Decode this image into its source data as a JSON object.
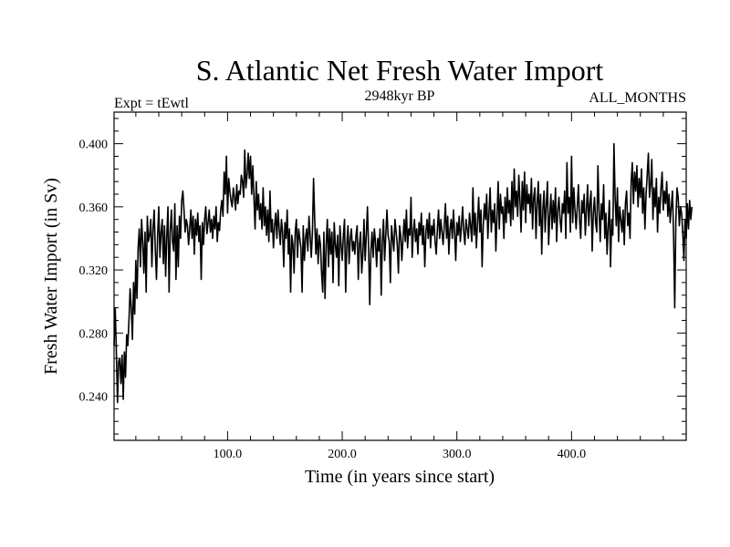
{
  "chart_data": {
    "type": "line",
    "title": "S. Atlantic Net Fresh Water Import",
    "subtitle_left": "Expt = tEwtl",
    "subtitle_center": "2948kyr BP",
    "subtitle_right": "ALL_MONTHS",
    "xlabel": "Time (in years since start)",
    "ylabel": "Fresh Water Import (in Sv)",
    "xlim": [
      1,
      500
    ],
    "ylim": [
      0.212,
      0.42
    ],
    "xticks": [
      100,
      200,
      300,
      400
    ],
    "xtick_labels": [
      "100.0",
      "200.0",
      "300.0",
      "400.0"
    ],
    "yticks": [
      0.24,
      0.28,
      0.32,
      0.36,
      0.4
    ],
    "ytick_labels": [
      "0.240",
      "0.280",
      "0.320",
      "0.360",
      "0.400"
    ],
    "x_minor_step": 20,
    "y_minor_step": 0.008,
    "grid": false,
    "series": [
      {
        "name": "Fresh Water Import",
        "color": "#000000",
        "x_start": 1,
        "x_step": 1,
        "values": [
          0.272,
          0.296,
          0.268,
          0.236,
          0.262,
          0.264,
          0.248,
          0.266,
          0.238,
          0.268,
          0.252,
          0.279,
          0.272,
          0.288,
          0.308,
          0.296,
          0.276,
          0.312,
          0.292,
          0.326,
          0.302,
          0.334,
          0.346,
          0.322,
          0.352,
          0.338,
          0.318,
          0.344,
          0.306,
          0.354,
          0.338,
          0.342,
          0.352,
          0.322,
          0.346,
          0.358,
          0.332,
          0.314,
          0.342,
          0.36,
          0.328,
          0.344,
          0.352,
          0.324,
          0.348,
          0.316,
          0.342,
          0.36,
          0.306,
          0.344,
          0.358,
          0.338,
          0.332,
          0.362,
          0.314,
          0.348,
          0.322,
          0.354,
          0.34,
          0.364,
          0.37,
          0.358,
          0.344,
          0.352,
          0.348,
          0.336,
          0.346,
          0.358,
          0.34,
          0.354,
          0.33,
          0.352,
          0.342,
          0.356,
          0.338,
          0.348,
          0.314,
          0.35,
          0.336,
          0.352,
          0.36,
          0.343,
          0.35,
          0.358,
          0.344,
          0.352,
          0.34,
          0.354,
          0.346,
          0.36,
          0.338,
          0.35,
          0.345,
          0.358,
          0.364,
          0.354,
          0.382,
          0.368,
          0.392,
          0.356,
          0.378,
          0.37,
          0.364,
          0.36,
          0.372,
          0.366,
          0.358,
          0.374,
          0.362,
          0.37,
          0.368,
          0.38,
          0.376,
          0.366,
          0.396,
          0.372,
          0.38,
          0.394,
          0.378,
          0.392,
          0.368,
          0.386,
          0.366,
          0.346,
          0.376,
          0.358,
          0.368,
          0.352,
          0.362,
          0.346,
          0.372,
          0.348,
          0.36,
          0.342,
          0.358,
          0.338,
          0.37,
          0.344,
          0.352,
          0.334,
          0.348,
          0.356,
          0.34,
          0.358,
          0.346,
          0.336,
          0.352,
          0.344,
          0.322,
          0.35,
          0.34,
          0.358,
          0.33,
          0.346,
          0.306,
          0.342,
          0.336,
          0.318,
          0.344,
          0.352,
          0.328,
          0.346,
          0.34,
          0.334,
          0.306,
          0.348,
          0.326,
          0.34,
          0.346,
          0.332,
          0.354,
          0.342,
          0.328,
          0.344,
          0.378,
          0.352,
          0.33,
          0.346,
          0.324,
          0.342,
          0.336,
          0.318,
          0.306,
          0.344,
          0.302,
          0.336,
          0.352,
          0.322,
          0.346,
          0.33,
          0.344,
          0.312,
          0.35,
          0.336,
          0.328,
          0.342,
          0.31,
          0.348,
          0.336,
          0.326,
          0.342,
          0.352,
          0.306,
          0.336,
          0.348,
          0.324,
          0.34,
          0.346,
          0.332,
          0.338,
          0.33,
          0.342,
          0.348,
          0.314,
          0.336,
          0.344,
          0.318,
          0.33,
          0.352,
          0.326,
          0.342,
          0.36,
          0.334,
          0.298,
          0.332,
          0.344,
          0.328,
          0.346,
          0.338,
          0.322,
          0.34,
          0.332,
          0.346,
          0.304,
          0.338,
          0.352,
          0.326,
          0.342,
          0.358,
          0.342,
          0.338,
          0.312,
          0.348,
          0.34,
          0.332,
          0.352,
          0.344,
          0.336,
          0.318,
          0.348,
          0.342,
          0.326,
          0.34,
          0.352,
          0.338,
          0.358,
          0.334,
          0.346,
          0.342,
          0.366,
          0.328,
          0.344,
          0.352,
          0.338,
          0.346,
          0.33,
          0.35,
          0.342,
          0.356,
          0.336,
          0.348,
          0.322,
          0.344,
          0.352,
          0.34,
          0.356,
          0.334,
          0.348,
          0.342,
          0.352,
          0.338,
          0.33,
          0.346,
          0.358,
          0.34,
          0.352,
          0.344,
          0.336,
          0.348,
          0.362,
          0.34,
          0.354,
          0.33,
          0.346,
          0.352,
          0.34,
          0.358,
          0.344,
          0.326,
          0.35,
          0.342,
          0.354,
          0.338,
          0.348,
          0.36,
          0.344,
          0.336,
          0.352,
          0.346,
          0.34,
          0.356,
          0.348,
          0.338,
          0.372,
          0.342,
          0.356,
          0.334,
          0.35,
          0.366,
          0.344,
          0.358,
          0.322,
          0.348,
          0.362,
          0.352,
          0.368,
          0.34,
          0.356,
          0.372,
          0.344,
          0.358,
          0.35,
          0.362,
          0.332,
          0.354,
          0.376,
          0.346,
          0.368,
          0.356,
          0.36,
          0.34,
          0.366,
          0.35,
          0.372,
          0.356,
          0.364,
          0.348,
          0.376,
          0.352,
          0.384,
          0.36,
          0.37,
          0.354,
          0.38,
          0.364,
          0.344,
          0.376,
          0.358,
          0.382,
          0.35,
          0.374,
          0.362,
          0.368,
          0.356,
          0.378,
          0.346,
          0.366,
          0.372,
          0.34,
          0.362,
          0.376,
          0.348,
          0.368,
          0.33,
          0.358,
          0.37,
          0.344,
          0.362,
          0.376,
          0.336,
          0.354,
          0.368,
          0.346,
          0.364,
          0.35,
          0.372,
          0.338,
          0.358,
          0.366,
          0.352,
          0.344,
          0.362,
          0.356,
          0.37,
          0.34,
          0.388,
          0.356,
          0.366,
          0.344,
          0.392,
          0.35,
          0.372,
          0.358,
          0.346,
          0.36,
          0.374,
          0.352,
          0.34,
          0.364,
          0.356,
          0.368,
          0.342,
          0.358,
          0.374,
          0.348,
          0.362,
          0.37,
          0.332,
          0.356,
          0.366,
          0.35,
          0.344,
          0.386,
          0.358,
          0.338,
          0.362,
          0.352,
          0.374,
          0.34,
          0.356,
          0.33,
          0.348,
          0.364,
          0.322,
          0.352,
          0.342,
          0.4,
          0.366,
          0.348,
          0.372,
          0.338,
          0.36,
          0.352,
          0.344,
          0.358,
          0.336,
          0.362,
          0.37,
          0.348,
          0.356,
          0.34,
          0.376,
          0.388,
          0.362,
          0.382,
          0.37,
          0.386,
          0.36,
          0.378,
          0.366,
          0.384,
          0.356,
          0.372,
          0.346,
          0.368,
          0.38,
          0.394,
          0.366,
          0.374,
          0.39,
          0.352,
          0.372,
          0.36,
          0.378,
          0.344,
          0.366,
          0.356,
          0.372,
          0.382,
          0.358,
          0.37,
          0.362,
          0.376,
          0.354,
          0.368,
          0.35,
          0.36,
          0.37,
          0.342,
          0.296,
          0.352,
          0.372,
          0.366,
          0.348,
          0.36,
          0.356,
          0.344,
          0.326,
          0.352,
          0.34,
          0.362,
          0.346,
          0.364,
          0.352,
          0.36
        ]
      }
    ]
  }
}
